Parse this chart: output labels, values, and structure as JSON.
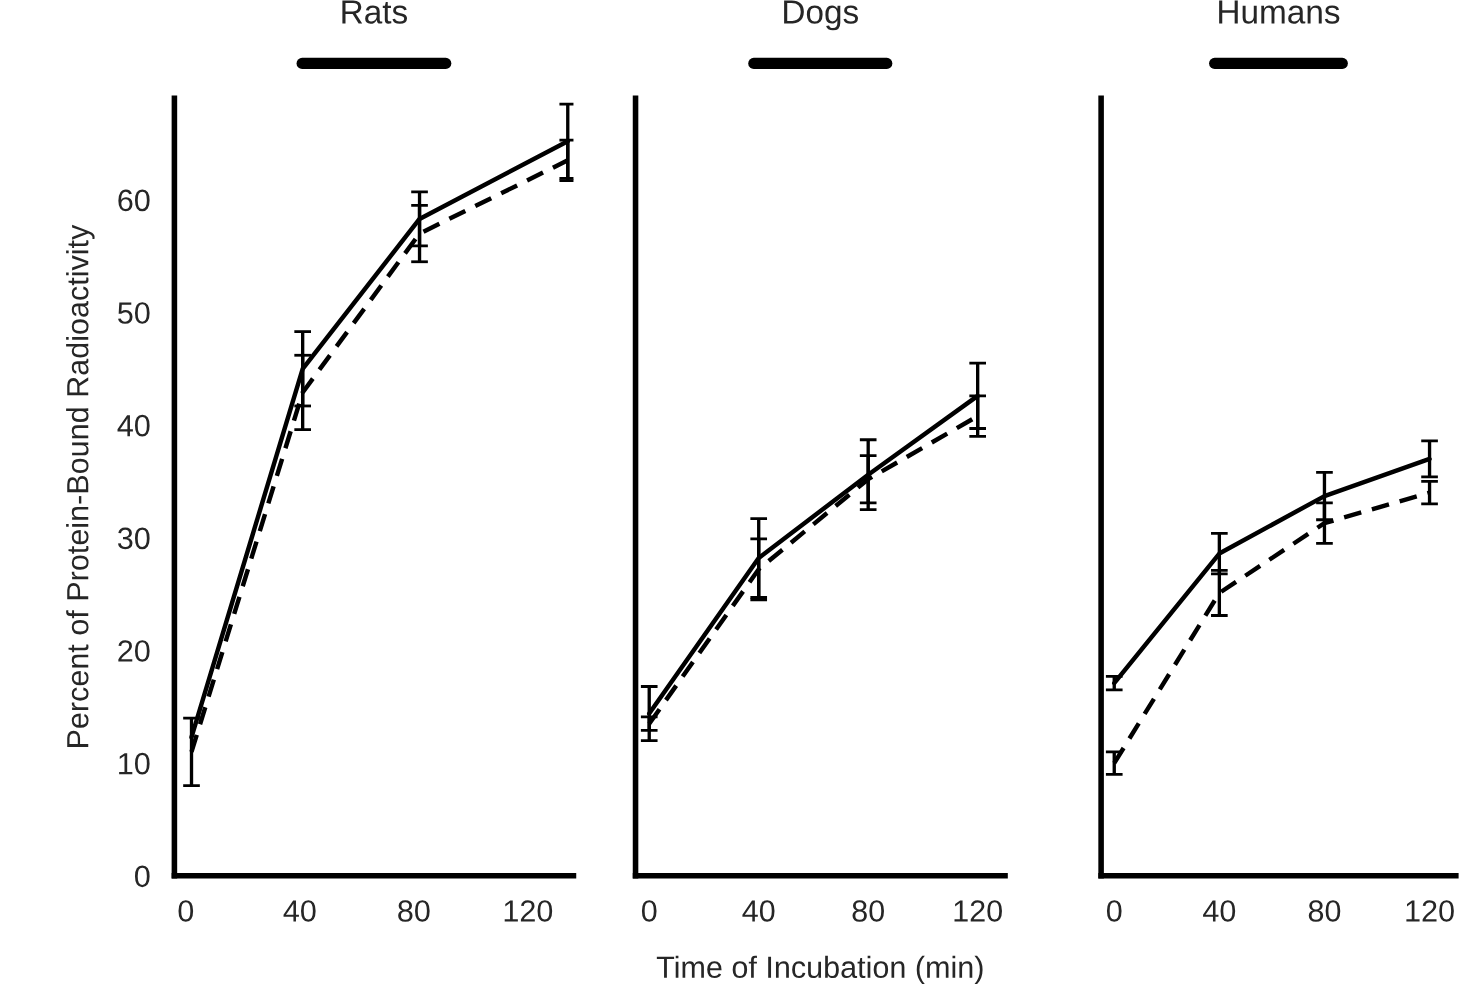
{
  "chart_data": [
    {
      "type": "line",
      "title": "Rats",
      "ylabel": "Percent of Protein-Bound Radioactivity",
      "xlim": [
        -4,
        136
      ],
      "xticks": [
        0,
        40,
        80,
        120
      ],
      "ylim": [
        0,
        69
      ],
      "yticks": [
        0,
        10,
        20,
        30,
        40,
        50,
        60
      ],
      "grid": false,
      "legend": false,
      "marker": "none",
      "series": [
        {
          "color": "#000000",
          "line_style": "solid",
          "x": [
            2,
            41,
            82,
            134
          ],
          "values": [
            12.3,
            45,
            58.3,
            65.2
          ],
          "errors": [
            null,
            3.3,
            2.4,
            3.3
          ]
        },
        {
          "color": "#000000",
          "line_style": "dashed",
          "x": [
            2,
            41,
            82,
            134
          ],
          "values": [
            11,
            42.9,
            57,
            63.5
          ],
          "errors": [
            3,
            3.3,
            2.5,
            1.8
          ]
        }
      ]
    },
    {
      "type": "line",
      "title": "Dogs",
      "xlabel": "Time of Incubation (min)",
      "xlim": [
        -5,
        130
      ],
      "xticks": [
        0,
        40,
        80,
        120
      ],
      "ylim": [
        0,
        69
      ],
      "yticks": [
        0,
        10,
        20,
        30,
        40,
        50,
        60
      ],
      "tick_labels": "x",
      "grid": false,
      "legend": false,
      "marker": "none",
      "series": [
        {
          "color": "#000000",
          "line_style": "solid",
          "x": [
            0,
            40,
            80,
            120
          ],
          "values": [
            14.4,
            28.2,
            35.6,
            42.6
          ],
          "errors": [
            2.4,
            3.5,
            3.1,
            2.9
          ]
        },
        {
          "color": "#000000",
          "line_style": "dashed",
          "x": [
            0,
            40,
            80,
            120
          ],
          "values": [
            13.5,
            27.2,
            35.2,
            40.8
          ],
          "errors": [
            0.6,
            2.7,
            2.1,
            1.8
          ]
        }
      ]
    },
    {
      "type": "line",
      "title": "Humans",
      "xlim": [
        -5,
        130
      ],
      "xticks": [
        0,
        40,
        80,
        120
      ],
      "ylim": [
        0,
        69
      ],
      "yticks": [
        0,
        10,
        20,
        30,
        40,
        50,
        60
      ],
      "tick_labels": "x",
      "grid": false,
      "legend": false,
      "marker": "none",
      "series": [
        {
          "color": "#000000",
          "line_style": "solid",
          "x": [
            0,
            40,
            80,
            120
          ],
          "values": [
            17.1,
            28.6,
            33.7,
            37
          ],
          "errors": [
            0.6,
            1.8,
            2.1,
            1.6
          ]
        },
        {
          "color": "#000000",
          "line_style": "dashed",
          "x": [
            0,
            40,
            80,
            120
          ],
          "values": [
            10,
            25.1,
            31.3,
            34
          ],
          "errors": [
            1,
            2,
            1.8,
            1
          ]
        }
      ]
    }
  ]
}
